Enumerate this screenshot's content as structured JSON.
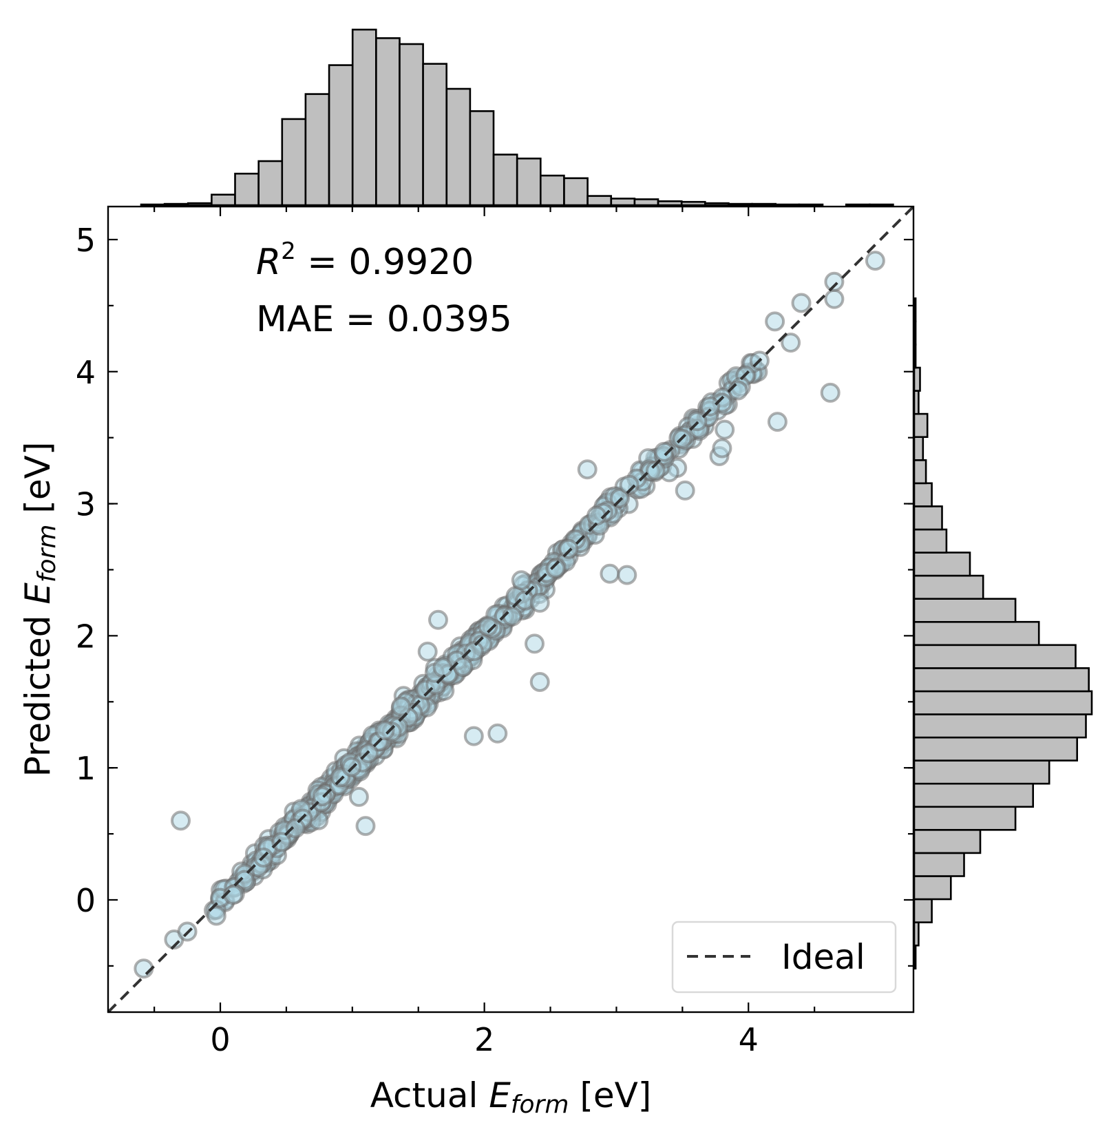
{
  "chart_data": {
    "type": "scatter",
    "xlabel_main": "Actual ",
    "xlabel_sub": "form",
    "xlabel_unit": " [eV]",
    "ylabel_main": "Predicted ",
    "ylabel_sub": "form",
    "ylabel_unit": " [eV]",
    "axis_symbol": "E",
    "xlim": [
      -0.85,
      5.25
    ],
    "ylim": [
      -0.85,
      5.25
    ],
    "x_ticks": [
      0,
      2,
      4
    ],
    "x_tick_labels": [
      "0",
      "2",
      "4"
    ],
    "y_ticks": [
      0,
      1,
      2,
      3,
      4,
      5
    ],
    "y_tick_labels": [
      "0",
      "1",
      "2",
      "3",
      "4",
      "5"
    ],
    "minor_ticks": [
      -0.5,
      0.5,
      1.0,
      1.5,
      2.5,
      3.0,
      3.5,
      4.5
    ],
    "stats": {
      "r2_symbol": "R",
      "r2_exp": "2",
      "r2_text": " = 0.9920",
      "mae_text": "MAE = 0.0395"
    },
    "legend": {
      "label": "Ideal",
      "position": "lower-right"
    },
    "ideal_line": {
      "from": [
        -0.85,
        -0.85
      ],
      "to": [
        5.25,
        5.25
      ]
    },
    "outliers": [
      [
        -0.3,
        0.6
      ],
      [
        1.1,
        0.56
      ],
      [
        1.05,
        0.78
      ],
      [
        1.92,
        1.24
      ],
      [
        2.1,
        1.26
      ],
      [
        2.42,
        1.65
      ],
      [
        2.38,
        1.94
      ],
      [
        2.95,
        2.47
      ],
      [
        3.08,
        2.46
      ],
      [
        3.52,
        3.1
      ],
      [
        2.78,
        3.26
      ],
      [
        3.78,
        3.36
      ],
      [
        3.8,
        3.42
      ],
      [
        3.82,
        3.56
      ],
      [
        4.22,
        3.62
      ],
      [
        4.62,
        3.84
      ],
      [
        4.65,
        4.55
      ],
      [
        4.65,
        4.68
      ],
      [
        4.96,
        4.84
      ],
      [
        4.4,
        4.52
      ],
      [
        4.2,
        4.38
      ],
      [
        4.32,
        4.22
      ],
      [
        1.65,
        2.12
      ],
      [
        1.57,
        1.88
      ],
      [
        -0.58,
        -0.52
      ],
      [
        -0.35,
        -0.3
      ],
      [
        -0.25,
        -0.24
      ],
      [
        -0.03,
        -0.12
      ],
      [
        2.28,
        2.42
      ],
      [
        2.42,
        2.25
      ]
    ],
    "hist_x": {
      "bin_start": -0.6,
      "bin_width": 0.178,
      "counts": [
        1,
        2,
        3,
        16,
        48,
        67,
        131,
        169,
        213,
        267,
        254,
        245,
        215,
        177,
        143,
        77,
        71,
        45,
        41,
        14,
        10,
        9,
        6,
        5,
        3,
        2,
        2,
        1,
        1,
        0,
        1,
        1
      ]
    },
    "hist_y": {
      "bin_start": -0.52,
      "bin_width": 0.175,
      "counts": [
        1,
        3,
        12,
        25,
        34,
        45,
        69,
        81,
        92,
        111,
        117,
        121,
        119,
        110,
        85,
        69,
        47,
        38,
        22,
        19,
        12,
        8,
        6,
        9,
        3,
        4,
        1,
        1,
        1,
        0,
        0,
        0
      ]
    }
  }
}
